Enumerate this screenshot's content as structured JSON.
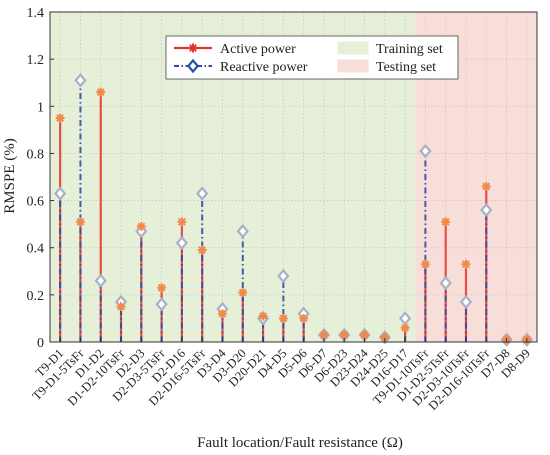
{
  "chart_data": {
    "type": "stem",
    "title": "",
    "xlabel": "Fault location/Fault resistance (Ω)",
    "ylabel": "RMSPE (%)",
    "ylim": [
      0,
      1.4
    ],
    "yticks": [
      "0",
      "0.2",
      "0.4",
      "0.6",
      "0.8",
      "1",
      "1.2",
      "1.4"
    ],
    "grid": true,
    "legend_position": "top-center",
    "categories": [
      "T9-D1",
      "T9-D1-5TsFr",
      "D1-D2",
      "D1-D2-10TsFr",
      "D2-D3",
      "D2-D3-5TsFr",
      "D2-D16",
      "D2-D16-5TsFr",
      "D3-D4",
      "D3-D20",
      "D20-D21",
      "D4-D5",
      "D5-D6",
      "D6-D7",
      "D6-D23",
      "D23-D24",
      "D24-D25",
      "D16-D17",
      "T9-D1-10TsFr",
      "D1-D2-5TsFr",
      "D2-D3-10TsFr",
      "D2-D16-10TsFr",
      "D7-D8",
      "D8-D9"
    ],
    "series": [
      {
        "name": "Active power",
        "color": "#e8322e",
        "marker_color": "#f08a4b",
        "line": "solid",
        "marker": "asterisk",
        "values": [
          0.95,
          0.51,
          1.06,
          0.15,
          0.49,
          0.23,
          0.51,
          0.39,
          0.12,
          0.21,
          0.11,
          0.1,
          0.1,
          0.03,
          0.03,
          0.03,
          0.02,
          0.06,
          0.33,
          0.51,
          0.33,
          0.66,
          0.01,
          0.01
        ]
      },
      {
        "name": "Reactive power",
        "color": "#2a4fa8",
        "marker_color": "#a8b0c8",
        "line": "dashdot",
        "marker": "diamond",
        "values": [
          0.63,
          1.11,
          0.26,
          0.17,
          0.47,
          0.16,
          0.42,
          0.63,
          0.14,
          0.47,
          0.1,
          0.28,
          0.12,
          0.03,
          0.03,
          0.03,
          0.02,
          0.1,
          0.81,
          0.25,
          0.17,
          0.56,
          0.01,
          0.01
        ]
      }
    ],
    "regions": [
      {
        "name": "Training set",
        "from_index": 0,
        "to_index": 17,
        "color": "#e6f0d8"
      },
      {
        "name": "Testing set",
        "from_index": 18,
        "to_index": 23,
        "color": "#f8ded8"
      }
    ]
  }
}
